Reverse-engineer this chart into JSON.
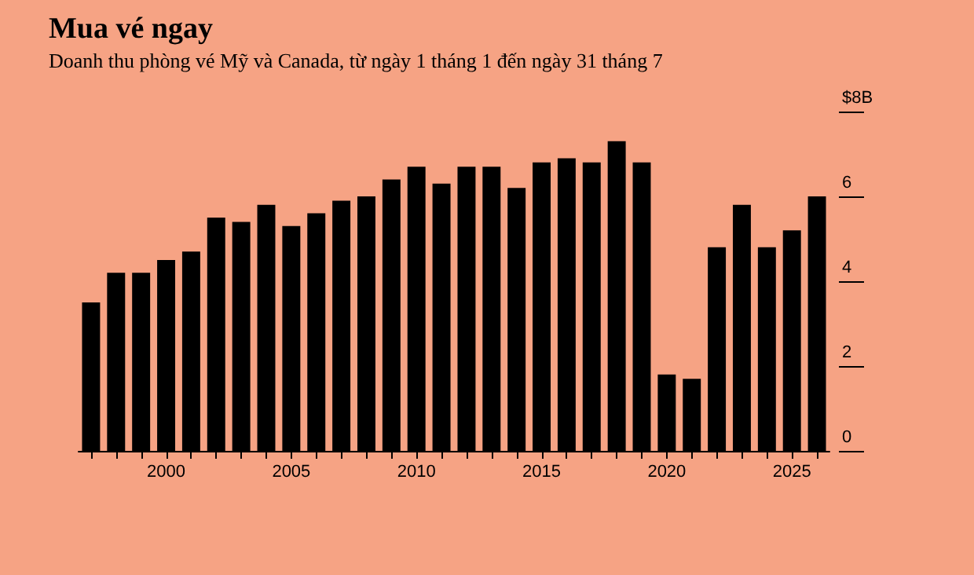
{
  "chart_data": {
    "type": "bar",
    "title": "Mua vé ngay",
    "subtitle": "Doanh thu phòng vé Mỹ và Canada, từ ngày 1 tháng 1 đến ngày 31 tháng 7",
    "categories": [
      null,
      null,
      null,
      "2000",
      null,
      null,
      null,
      null,
      "2005",
      null,
      null,
      null,
      null,
      "2010",
      null,
      null,
      null,
      null,
      "2015",
      null,
      null,
      null,
      null,
      "2020",
      null,
      null,
      null,
      null,
      "2025",
      null
    ],
    "series": [
      {
        "color": "#000000",
        "values": [
          3.5,
          4.2,
          4.2,
          4.5,
          4.7,
          5.5,
          5.4,
          5.8,
          5.3,
          5.6,
          5.9,
          6.0,
          6.4,
          6.7,
          6.3,
          6.7,
          6.7,
          6.2,
          6.8,
          6.9,
          6.8,
          7.3,
          6.8,
          1.8,
          1.7,
          4.8,
          5.8,
          4.8,
          5.2,
          6.0
        ]
      }
    ],
    "ylim": [
      0,
      8
    ],
    "yticks": [
      0,
      2,
      4,
      6,
      {
        "value": 8,
        "label": "$8B"
      }
    ],
    "grid": false
  }
}
